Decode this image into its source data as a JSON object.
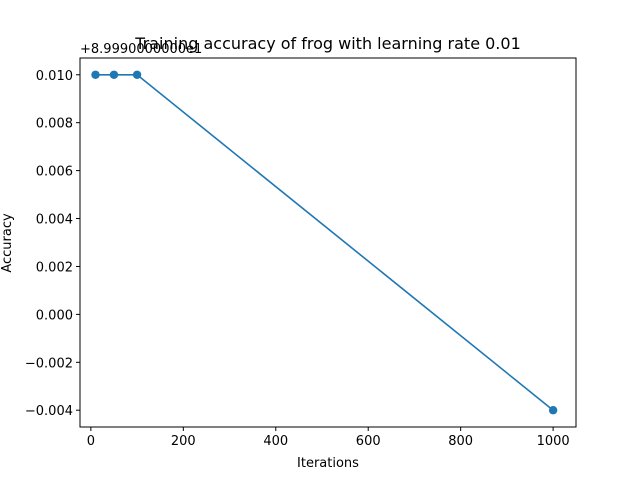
{
  "chart_data": {
    "type": "line",
    "title": "Training accuracy of frog with learning rate 0.01",
    "xlabel": "Iterations",
    "ylabel": "Accuracy",
    "y_offset_label": "+8.9990000000e1",
    "xlim": [
      -23.5,
      1049.5
    ],
    "ylim": [
      -0.0047,
      0.0107
    ],
    "x_ticks": [
      0,
      200,
      400,
      600,
      800,
      1000
    ],
    "x_tick_labels": [
      "0",
      "200",
      "400",
      "600",
      "800",
      "1000"
    ],
    "y_ticks": [
      -0.004,
      -0.002,
      0.0,
      0.002,
      0.004,
      0.006,
      0.008,
      0.01
    ],
    "y_tick_labels": [
      "−0.004",
      "−0.002",
      "0.000",
      "0.002",
      "0.004",
      "0.006",
      "0.008",
      "0.010"
    ],
    "grid": false,
    "series": [
      {
        "color": "#1f77b4",
        "marker": "circle",
        "x": [
          10,
          50,
          100,
          1000
        ],
        "y": [
          0.01,
          0.01,
          0.01,
          -0.004
        ]
      }
    ]
  }
}
